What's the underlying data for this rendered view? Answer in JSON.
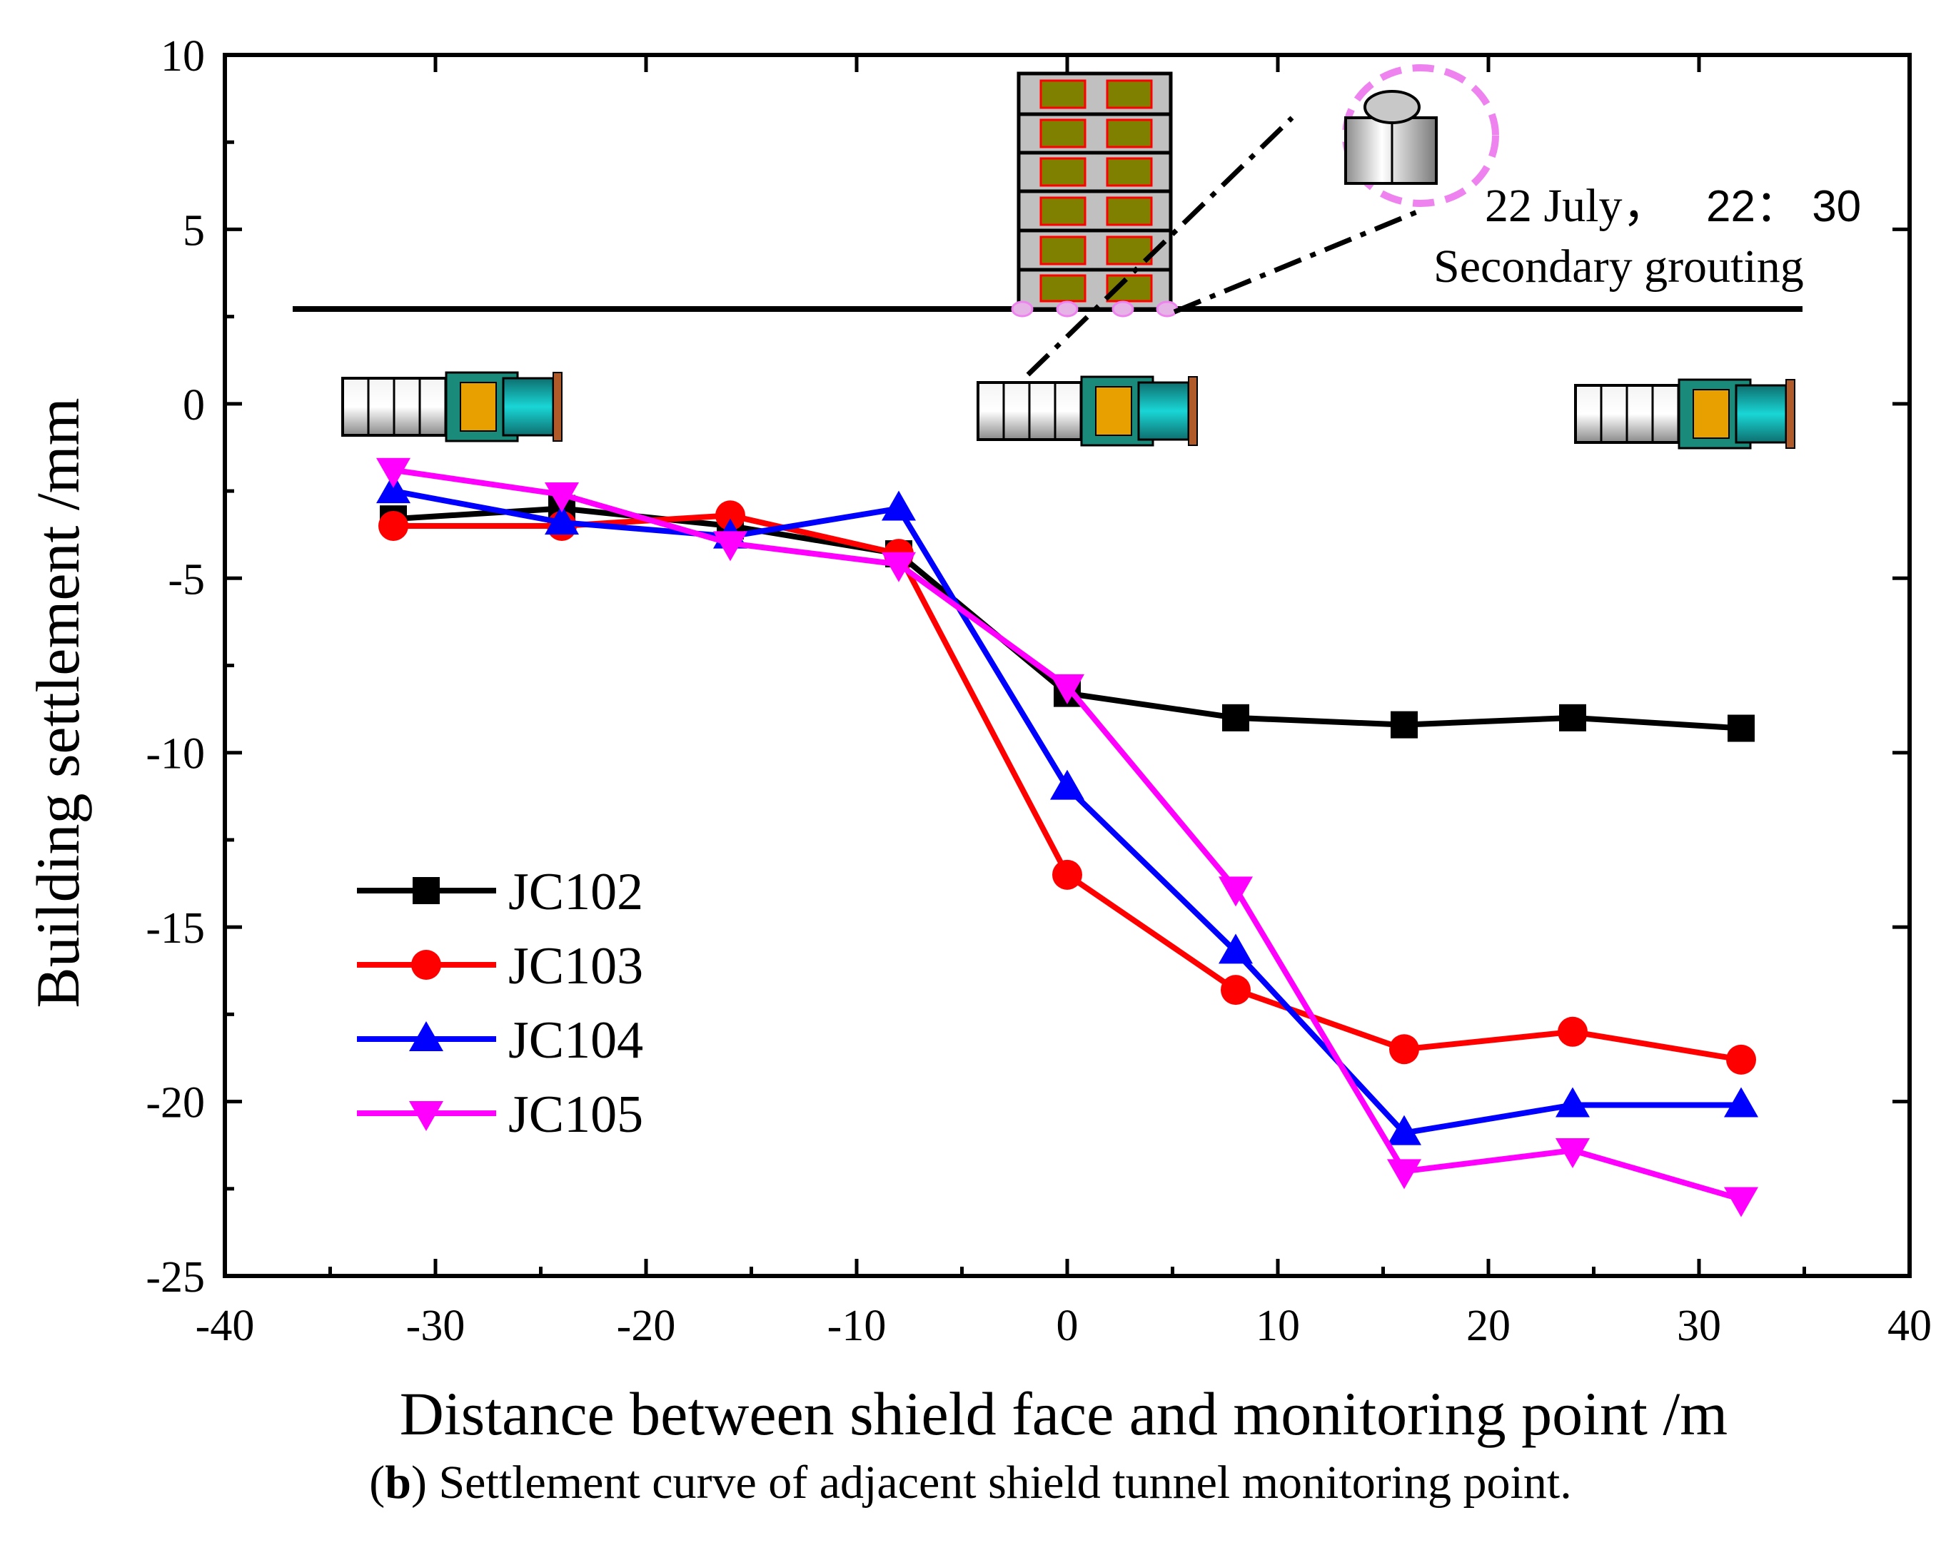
{
  "chart_data": {
    "type": "line",
    "xlabel": "Distance between shield face and monitoring point /m",
    "ylabel": "Building settlement /mm",
    "xlim": [
      -40,
      40
    ],
    "ylim": [
      -25,
      10
    ],
    "xticks": [
      -40,
      -30,
      -20,
      -10,
      0,
      10,
      20,
      30,
      40
    ],
    "yticks": [
      10,
      5,
      0,
      -5,
      -10,
      -15,
      -20,
      -25
    ],
    "x": [
      -32,
      -24,
      -16,
      -8,
      0,
      8,
      16,
      24,
      32
    ],
    "series": [
      {
        "name": "JC102",
        "color": "#000000",
        "marker": "square",
        "values": [
          -3.3,
          -3.0,
          -3.5,
          -4.3,
          -8.3,
          -9.0,
          -9.2,
          -9.0,
          -9.3
        ]
      },
      {
        "name": "JC103",
        "color": "#ff0000",
        "marker": "circle",
        "values": [
          -3.5,
          -3.5,
          -3.2,
          -4.3,
          -13.5,
          -16.8,
          -18.5,
          -18.0,
          -18.8
        ]
      },
      {
        "name": "JC104",
        "color": "#0000ff",
        "marker": "triangle-up",
        "values": [
          -2.5,
          -3.4,
          -3.8,
          -3.0,
          -11.0,
          -15.7,
          -20.9,
          -20.1,
          -20.1
        ]
      },
      {
        "name": "JC105",
        "color": "#ff00ff",
        "marker": "triangle-down",
        "values": [
          -1.9,
          -2.6,
          -4.0,
          -4.6,
          -8.1,
          -13.9,
          -22.0,
          -21.4,
          -22.8
        ]
      }
    ],
    "legend_position": "bottom-left",
    "annotations": {
      "date": "22 July，",
      "time": "22： 30",
      "event": "Secondary grouting"
    },
    "ground_level": 2.7
  },
  "caption": {
    "label": "b",
    "text": "Settlement curve of adjacent shield tunnel monitoring point."
  }
}
